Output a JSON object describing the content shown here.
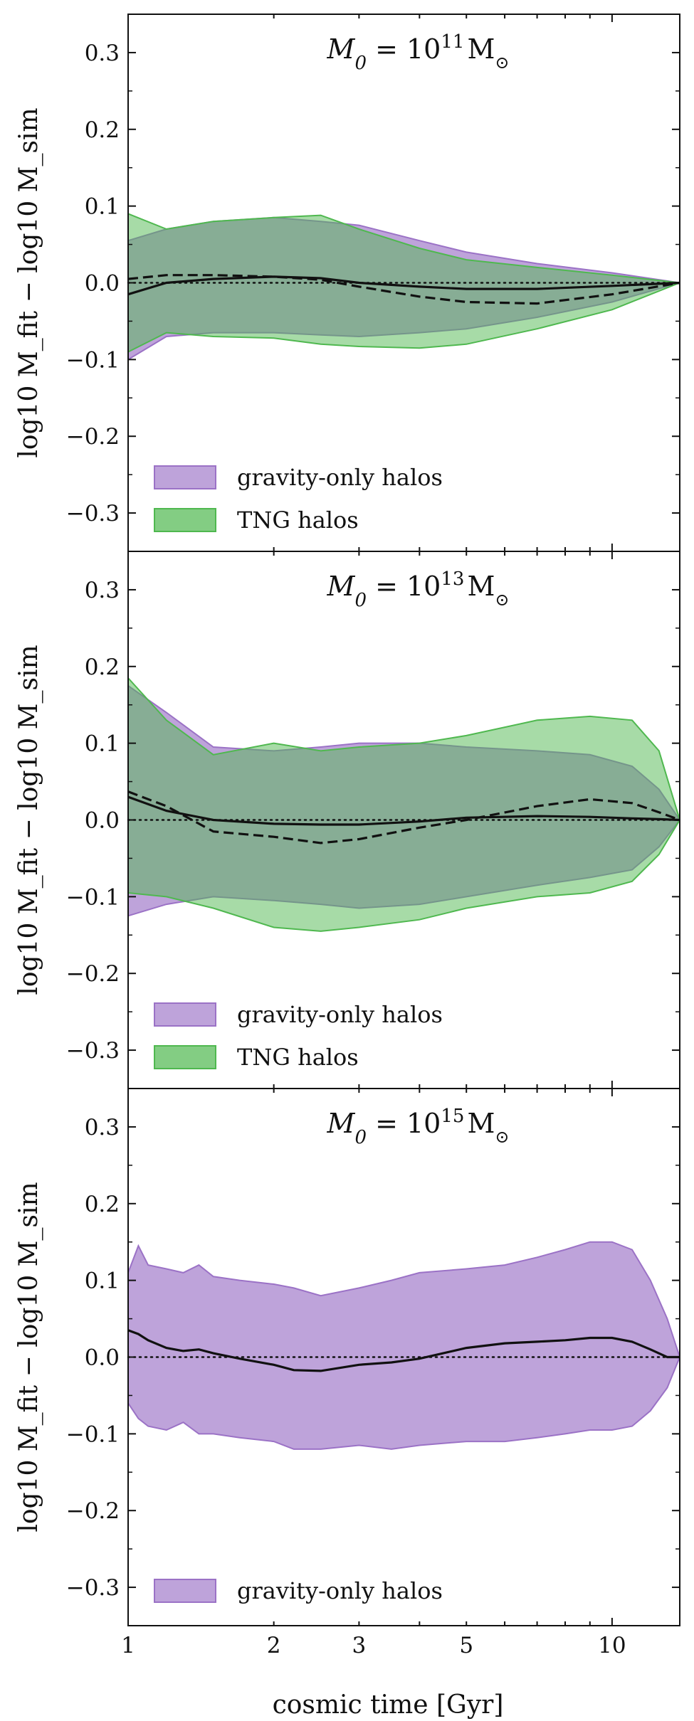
{
  "chart_data": [
    {
      "type": "area",
      "title": "M_0 = 10^11 M_⊙",
      "title_parts": {
        "lhs": "M",
        "sub": "0",
        "eq": " = 10",
        "sup": "11",
        "unit": "M",
        "unit_sub": "⊙"
      },
      "xlabel": "cosmic time [Gyr]",
      "ylabel": "log10 M_fit − log10 M_sim",
      "xscale": "log",
      "xlim": [
        1,
        13.8
      ],
      "ylim": [
        -0.35,
        0.35
      ],
      "yticks": [
        -0.3,
        -0.2,
        -0.1,
        0.0,
        0.1,
        0.2,
        0.3
      ],
      "ytick_labels": [
        "−0.3",
        "−0.2",
        "−0.1",
        "0.0",
        "0.1",
        "0.2",
        "0.3"
      ],
      "reference_line": 0,
      "legend_position": "lower-left",
      "legend": [
        "gravity-only halos",
        "TNG halos"
      ],
      "colors": {
        "gravity_only": "#9b72c6",
        "tng": "#4fb84f"
      },
      "x": [
        1.0,
        1.2,
        1.5,
        2.0,
        2.5,
        3.0,
        4.0,
        5.0,
        7.0,
        10.0,
        13.8
      ],
      "series": [
        {
          "name": "gravity-only halos",
          "kind": "band",
          "upper": [
            0.055,
            0.07,
            0.08,
            0.085,
            0.08,
            0.075,
            0.055,
            0.04,
            0.025,
            0.013,
            0.0
          ],
          "lower": [
            -0.1,
            -0.07,
            -0.065,
            -0.065,
            -0.068,
            -0.07,
            -0.065,
            -0.06,
            -0.045,
            -0.025,
            0.0
          ]
        },
        {
          "name": "TNG halos",
          "kind": "band",
          "upper": [
            0.09,
            0.07,
            0.08,
            0.085,
            0.088,
            0.07,
            0.045,
            0.03,
            0.02,
            0.01,
            0.0
          ],
          "lower": [
            -0.09,
            -0.065,
            -0.07,
            -0.072,
            -0.08,
            -0.083,
            -0.085,
            -0.08,
            -0.06,
            -0.035,
            0.0
          ]
        },
        {
          "name": "gravity-only median",
          "kind": "line",
          "style": "solid",
          "values": [
            -0.015,
            0.0,
            0.005,
            0.008,
            0.006,
            0.0,
            -0.005,
            -0.008,
            -0.008,
            -0.004,
            0.0
          ]
        },
        {
          "name": "TNG median",
          "kind": "line",
          "style": "dashed",
          "values": [
            0.005,
            0.01,
            0.01,
            0.008,
            0.004,
            -0.005,
            -0.018,
            -0.025,
            -0.027,
            -0.015,
            0.0
          ]
        }
      ]
    },
    {
      "type": "area",
      "title": "M_0 = 10^13 M_⊙",
      "title_parts": {
        "lhs": "M",
        "sub": "0",
        "eq": " = 10",
        "sup": "13",
        "unit": "M",
        "unit_sub": "⊙"
      },
      "xlabel": "cosmic time [Gyr]",
      "ylabel": "log10 M_fit − log10 M_sim",
      "xscale": "log",
      "xlim": [
        1,
        13.8
      ],
      "ylim": [
        -0.35,
        0.35
      ],
      "yticks": [
        -0.3,
        -0.2,
        -0.1,
        0.0,
        0.1,
        0.2,
        0.3
      ],
      "ytick_labels": [
        "−0.3",
        "−0.2",
        "−0.1",
        "0.0",
        "0.1",
        "0.2",
        "0.3"
      ],
      "reference_line": 0,
      "legend_position": "lower-left",
      "legend": [
        "gravity-only halos",
        "TNG halos"
      ],
      "colors": {
        "gravity_only": "#9b72c6",
        "tng": "#4fb84f"
      },
      "x": [
        1.0,
        1.2,
        1.5,
        2.0,
        2.5,
        3.0,
        4.0,
        5.0,
        7.0,
        9.0,
        11.0,
        12.5,
        13.8
      ],
      "series": [
        {
          "name": "gravity-only halos",
          "kind": "band",
          "upper": [
            0.175,
            0.14,
            0.095,
            0.09,
            0.095,
            0.1,
            0.1,
            0.095,
            0.09,
            0.085,
            0.07,
            0.04,
            0.0
          ],
          "lower": [
            -0.125,
            -0.11,
            -0.1,
            -0.105,
            -0.11,
            -0.115,
            -0.11,
            -0.1,
            -0.085,
            -0.075,
            -0.065,
            -0.035,
            0.0
          ]
        },
        {
          "name": "TNG halos",
          "kind": "band",
          "upper": [
            0.185,
            0.13,
            0.085,
            0.1,
            0.09,
            0.095,
            0.1,
            0.11,
            0.13,
            0.135,
            0.13,
            0.09,
            0.0
          ],
          "lower": [
            -0.095,
            -0.1,
            -0.115,
            -0.14,
            -0.145,
            -0.14,
            -0.13,
            -0.115,
            -0.1,
            -0.095,
            -0.08,
            -0.045,
            0.0
          ]
        },
        {
          "name": "gravity-only median",
          "kind": "line",
          "style": "solid",
          "values": [
            0.03,
            0.012,
            0.0,
            -0.005,
            -0.006,
            -0.006,
            -0.002,
            0.003,
            0.005,
            0.004,
            0.002,
            0.001,
            0.0
          ]
        },
        {
          "name": "TNG median",
          "kind": "line",
          "style": "dashed",
          "values": [
            0.037,
            0.018,
            -0.015,
            -0.022,
            -0.03,
            -0.025,
            -0.01,
            0.0,
            0.018,
            0.027,
            0.022,
            0.01,
            0.0
          ]
        }
      ]
    },
    {
      "type": "area",
      "title": "M_0 = 10^15 M_⊙",
      "title_parts": {
        "lhs": "M",
        "sub": "0",
        "eq": " = 10",
        "sup": "15",
        "unit": "M",
        "unit_sub": "⊙"
      },
      "xlabel": "cosmic time [Gyr]",
      "ylabel": "log10 M_fit − log10 M_sim",
      "xscale": "log",
      "xlim": [
        1,
        13.8
      ],
      "ylim": [
        -0.35,
        0.35
      ],
      "yticks": [
        -0.3,
        -0.2,
        -0.1,
        0.0,
        0.1,
        0.2,
        0.3
      ],
      "ytick_labels": [
        "−0.3",
        "−0.2",
        "−0.1",
        "0.0",
        "0.1",
        "0.2",
        "0.3"
      ],
      "xticks": [
        1,
        2,
        3,
        5,
        10
      ],
      "xtick_labels": [
        "1",
        "2",
        "3",
        "5",
        "10"
      ],
      "reference_line": 0,
      "legend_position": "lower-left",
      "legend": [
        "gravity-only halos"
      ],
      "colors": {
        "gravity_only": "#9b72c6"
      },
      "x": [
        1.0,
        1.05,
        1.1,
        1.2,
        1.3,
        1.4,
        1.5,
        1.7,
        2.0,
        2.2,
        2.5,
        3.0,
        3.5,
        4.0,
        5.0,
        6.0,
        7.0,
        8.0,
        9.0,
        10.0,
        11.0,
        12.0,
        13.0,
        13.8
      ],
      "series": [
        {
          "name": "gravity-only halos",
          "kind": "band",
          "upper": [
            0.11,
            0.145,
            0.12,
            0.115,
            0.11,
            0.12,
            0.105,
            0.1,
            0.095,
            0.09,
            0.08,
            0.09,
            0.1,
            0.11,
            0.115,
            0.12,
            0.13,
            0.14,
            0.15,
            0.15,
            0.14,
            0.1,
            0.05,
            0.0
          ],
          "lower": [
            -0.06,
            -0.08,
            -0.09,
            -0.095,
            -0.085,
            -0.1,
            -0.1,
            -0.105,
            -0.11,
            -0.12,
            -0.12,
            -0.115,
            -0.12,
            -0.115,
            -0.11,
            -0.11,
            -0.105,
            -0.1,
            -0.095,
            -0.095,
            -0.09,
            -0.07,
            -0.04,
            0.0
          ]
        },
        {
          "name": "gravity-only median",
          "kind": "line",
          "style": "solid",
          "values": [
            0.035,
            0.03,
            0.022,
            0.012,
            0.008,
            0.01,
            0.005,
            -0.002,
            -0.01,
            -0.017,
            -0.018,
            -0.01,
            -0.007,
            -0.002,
            0.012,
            0.018,
            0.02,
            0.022,
            0.025,
            0.025,
            0.02,
            0.01,
            0.0,
            0.0
          ]
        }
      ]
    }
  ]
}
